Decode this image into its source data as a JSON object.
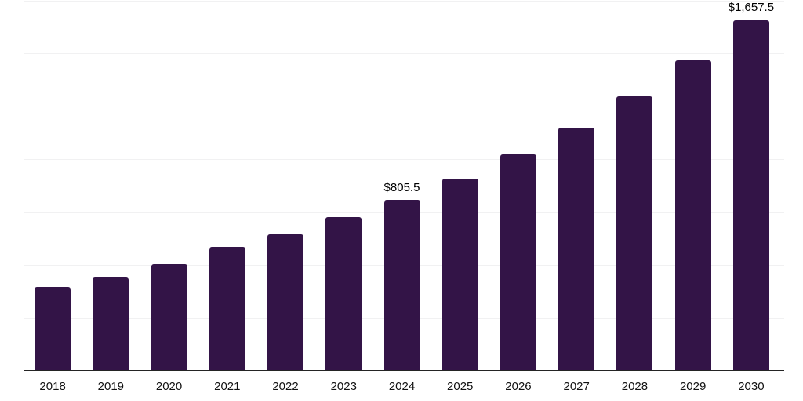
{
  "chart_data": {
    "type": "bar",
    "title": "",
    "xlabel": "",
    "ylabel": "",
    "categories": [
      "2018",
      "2019",
      "2020",
      "2021",
      "2022",
      "2023",
      "2024",
      "2025",
      "2026",
      "2027",
      "2028",
      "2029",
      "2030"
    ],
    "values": [
      394,
      441,
      503,
      582,
      645,
      726,
      805.5,
      907,
      1022,
      1151,
      1297,
      1467,
      1657.5
    ],
    "bar_labels": [
      "",
      "",
      "",
      "",
      "",
      "",
      "$805.5",
      "",
      "",
      "",
      "",
      "",
      "$1,657.5"
    ],
    "ylim": [
      0,
      1750
    ],
    "gridline_step": 250,
    "grid": true,
    "legend": "none",
    "colors": {
      "bar": "#331447",
      "gridline": "#f1f1f2",
      "axis_line": "#242424",
      "label_text": "#000000",
      "background": "#ffffff"
    }
  }
}
